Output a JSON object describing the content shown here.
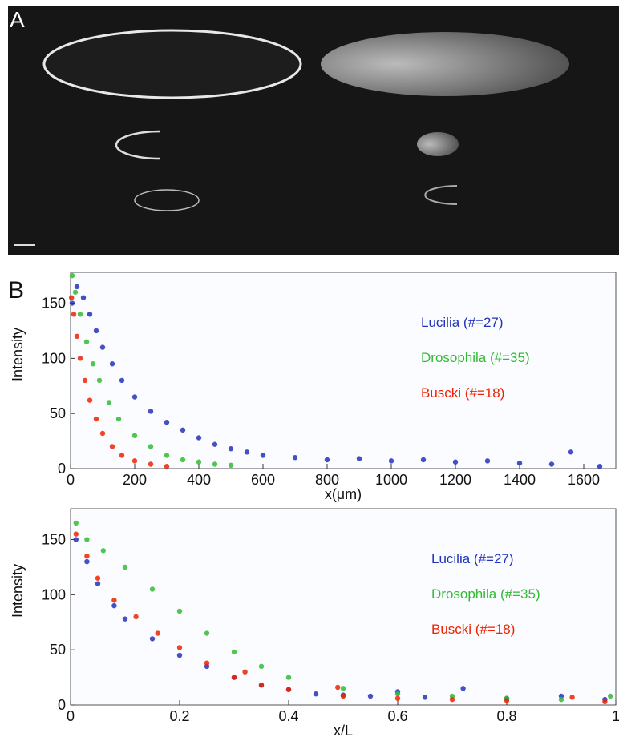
{
  "panels": {
    "a": "A",
    "b": "B"
  },
  "chart_data": [
    {
      "type": "scatter",
      "xlabel": "x(μm)",
      "ylabel": "Intensity",
      "xlim": [
        0,
        1700
      ],
      "ylim": [
        0,
        178
      ],
      "xticks": [
        0,
        200,
        400,
        600,
        800,
        1000,
        1200,
        1400,
        1600
      ],
      "yticks": [
        0,
        50,
        100,
        150
      ],
      "series": [
        {
          "name": "Lucilia (#=27)",
          "color": "#2233bb",
          "x": [
            5,
            20,
            40,
            60,
            80,
            100,
            130,
            160,
            200,
            250,
            300,
            350,
            400,
            450,
            500,
            550,
            600,
            700,
            800,
            900,
            1000,
            1100,
            1200,
            1300,
            1400,
            1500,
            1560,
            1650
          ],
          "values": [
            150,
            165,
            155,
            140,
            125,
            110,
            95,
            80,
            65,
            52,
            42,
            35,
            28,
            22,
            18,
            15,
            12,
            10,
            8,
            9,
            7,
            8,
            6,
            7,
            5,
            4,
            15,
            2
          ]
        },
        {
          "name": "Drosophila (#=35)",
          "color": "#33bb33",
          "x": [
            5,
            15,
            30,
            50,
            70,
            90,
            120,
            150,
            200,
            250,
            300,
            350,
            400,
            450,
            500
          ],
          "values": [
            175,
            160,
            140,
            115,
            95,
            80,
            60,
            45,
            30,
            20,
            12,
            8,
            6,
            4,
            3
          ]
        },
        {
          "name": "Buscki (#=18)",
          "color": "#ee2200",
          "x": [
            3,
            10,
            20,
            30,
            45,
            60,
            80,
            100,
            130,
            160,
            200,
            250,
            300
          ],
          "values": [
            155,
            140,
            120,
            100,
            80,
            62,
            45,
            32,
            20,
            12,
            7,
            4,
            2
          ]
        }
      ]
    },
    {
      "type": "scatter",
      "xlabel": "x/L",
      "ylabel": "Intensity",
      "xlim": [
        0,
        1
      ],
      "ylim": [
        0,
        178
      ],
      "xticks": [
        0,
        0.2,
        0.4,
        0.6,
        0.8,
        1
      ],
      "yticks": [
        0,
        50,
        100,
        150
      ],
      "series": [
        {
          "name": "Lucilia (#=27)",
          "color": "#2233bb",
          "x": [
            0.01,
            0.03,
            0.05,
            0.08,
            0.1,
            0.15,
            0.2,
            0.25,
            0.3,
            0.35,
            0.4,
            0.45,
            0.5,
            0.55,
            0.6,
            0.65,
            0.72,
            0.8,
            0.9,
            0.98
          ],
          "values": [
            150,
            130,
            110,
            90,
            78,
            60,
            45,
            35,
            25,
            18,
            14,
            10,
            9,
            8,
            12,
            7,
            15,
            6,
            8,
            5
          ]
        },
        {
          "name": "Drosophila (#=35)",
          "color": "#33bb33",
          "x": [
            0.01,
            0.03,
            0.06,
            0.1,
            0.15,
            0.2,
            0.25,
            0.3,
            0.35,
            0.4,
            0.5,
            0.6,
            0.7,
            0.8,
            0.9,
            0.99
          ],
          "values": [
            165,
            150,
            140,
            125,
            105,
            85,
            65,
            48,
            35,
            25,
            15,
            10,
            8,
            6,
            5,
            8
          ]
        },
        {
          "name": "Buscki (#=18)",
          "color": "#ee2200",
          "x": [
            0.01,
            0.03,
            0.05,
            0.08,
            0.12,
            0.16,
            0.2,
            0.25,
            0.3,
            0.32,
            0.35,
            0.4,
            0.49,
            0.5,
            0.6,
            0.7,
            0.8,
            0.92,
            0.98
          ],
          "values": [
            155,
            135,
            115,
            95,
            80,
            65,
            52,
            38,
            25,
            30,
            18,
            14,
            16,
            8,
            6,
            5,
            4,
            7,
            3
          ]
        }
      ]
    }
  ]
}
